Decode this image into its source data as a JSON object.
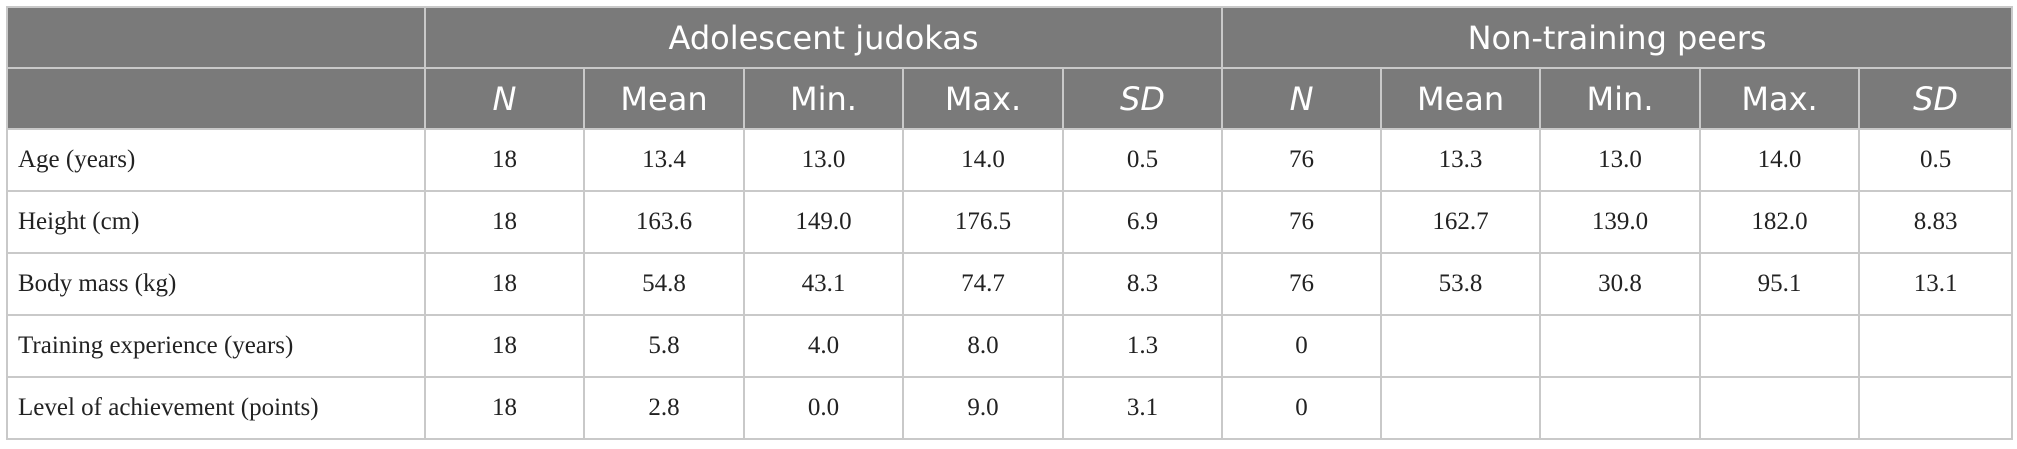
{
  "groups": [
    "Adolescent judokas",
    "Non-training peers"
  ],
  "columns": [
    "N",
    "Mean",
    "Min.",
    "Max.",
    "SD",
    "N",
    "Mean",
    "Min.",
    "Max.",
    "SD"
  ],
  "rows": [
    {
      "label": "Age (years)",
      "cells": [
        "18",
        "13.4",
        "13.0",
        "14.0",
        "0.5",
        "76",
        "13.3",
        "13.0",
        "14.0",
        "0.5"
      ]
    },
    {
      "label": "Height (cm)",
      "cells": [
        "18",
        "163.6",
        "149.0",
        "176.5",
        "6.9",
        "76",
        "162.7",
        "139.0",
        "182.0",
        "8.83"
      ]
    },
    {
      "label": "Body mass (kg)",
      "cells": [
        "18",
        "54.8",
        "43.1",
        "74.7",
        "8.3",
        "76",
        "53.8",
        "30.8",
        "95.1",
        "13.1"
      ]
    },
    {
      "label": "Training experience (years)",
      "cells": [
        "18",
        "5.8",
        "4.0",
        "8.0",
        "1.3",
        "0",
        "",
        "",
        "",
        ""
      ]
    },
    {
      "label": "Level of achievement (points)",
      "cells": [
        "18",
        "2.8",
        "0.0",
        "9.0",
        "3.1",
        "0",
        "",
        "",
        "",
        ""
      ]
    }
  ]
}
